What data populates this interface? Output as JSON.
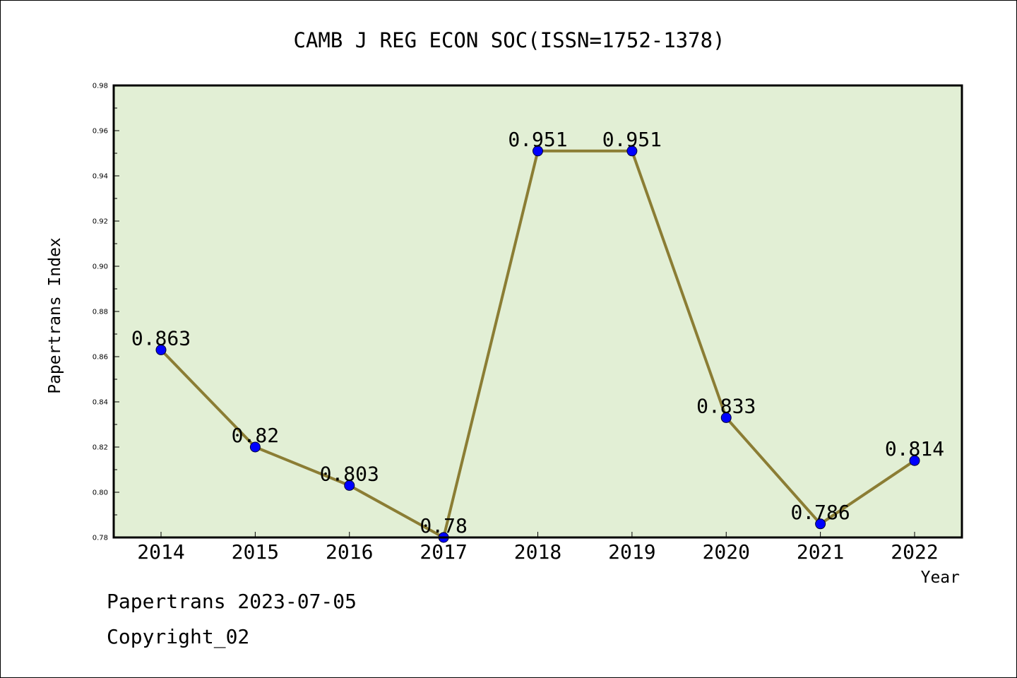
{
  "chart_data": {
    "type": "line",
    "title": "CAMB J REG ECON SOC(ISSN=1752-1378)",
    "xlabel": "Year",
    "ylabel": "Papertrans Index",
    "categories": [
      "2014",
      "2015",
      "2016",
      "2017",
      "2018",
      "2019",
      "2020",
      "2021",
      "2022"
    ],
    "series": [
      {
        "values": [
          0.863,
          0.82,
          0.803,
          0.78,
          0.951,
          0.951,
          0.833,
          0.786,
          0.814
        ]
      }
    ],
    "data_labels": [
      "0.863",
      "0.82",
      "0.803",
      "0.78",
      "0.951",
      "0.951",
      "0.833",
      "0.786",
      "0.814"
    ],
    "ylim": [
      0.78,
      0.98
    ],
    "yticks": [
      "0.78",
      "0.80",
      "0.82",
      "0.84",
      "0.86",
      "0.88",
      "0.90",
      "0.92",
      "0.94",
      "0.96",
      "0.98"
    ],
    "grid": false,
    "legend": "none",
    "colors": {
      "plot_background": "#e2efd5",
      "line": "#8b7d34",
      "marker": "#0000ff"
    }
  },
  "footer": {
    "date_line": "Papertrans 2023-07-05",
    "copyright": "Copyright_02"
  }
}
